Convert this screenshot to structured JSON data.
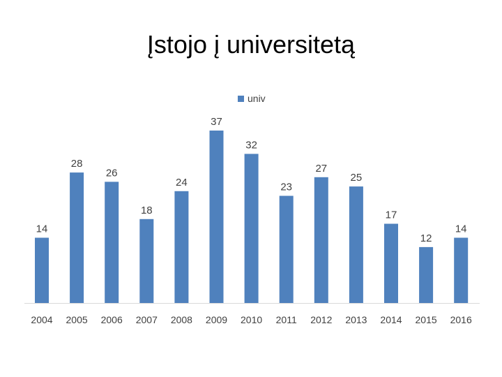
{
  "slide": {
    "title": "Įstojo į universitetą"
  },
  "chart_data": {
    "type": "bar",
    "categories": [
      "2004",
      "2005",
      "2006",
      "2007",
      "2008",
      "2009",
      "2010",
      "2011",
      "2012",
      "2013",
      "2014",
      "2015",
      "2016"
    ],
    "series": [
      {
        "name": "univ",
        "values": [
          14,
          28,
          26,
          18,
          24,
          37,
          32,
          23,
          27,
          25,
          17,
          12,
          14
        ],
        "color": "#4f81bd"
      }
    ],
    "title": "",
    "xlabel": "",
    "ylabel": "",
    "ylim": [
      0,
      40
    ],
    "grid": false,
    "legend": "top-center",
    "data_labels": true
  }
}
